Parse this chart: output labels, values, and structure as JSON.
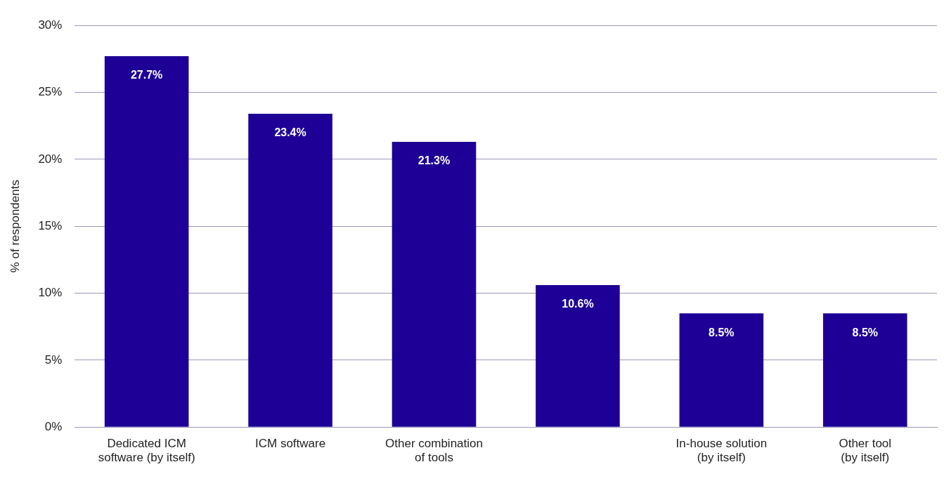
{
  "chart_data": {
    "type": "bar",
    "ylabel": "% of respondents",
    "categories": [
      "Dedicated ICM software (by itself)",
      "ICM software",
      "Other combination of tools",
      null,
      "In-house solution (by itself)",
      "Other tool (by itself)"
    ],
    "values": [
      27.7,
      23.4,
      21.3,
      10.6,
      8.5,
      8.5
    ],
    "value_labels": [
      "27.7%",
      "23.4%",
      "21.3%",
      "10.6%",
      "8.5%",
      "8.5%"
    ],
    "color": "#1e0096",
    "ylim": [
      0,
      30
    ],
    "yticks": [
      {
        "value": 0,
        "label": "0%"
      },
      {
        "value": 5,
        "label": "5%"
      },
      {
        "value": 10,
        "label": "10%"
      },
      {
        "value": 15,
        "label": "15%"
      },
      {
        "value": 20,
        "label": "20%"
      },
      {
        "value": 25,
        "label": "25%"
      },
      {
        "value": 30,
        "label": "30%"
      }
    ],
    "grid": "y",
    "legend": false
  }
}
